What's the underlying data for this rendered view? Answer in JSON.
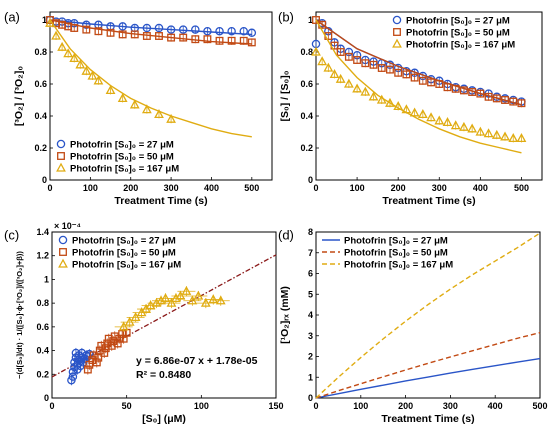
{
  "colors": {
    "blue": "#2a55c8",
    "red": "#c24a14",
    "gold": "#e0ac12",
    "fit": "#8b1a1a"
  },
  "chart_data": [
    {
      "type": "scatter",
      "panel": "(a)",
      "xlabel": "Treatment Time (s)",
      "ylabel": "[³O₂] / [³O₂]₀",
      "xlim": [
        0,
        550
      ],
      "ylim": [
        0,
        1.05
      ],
      "xticks": [
        "0",
        "100",
        "200",
        "300",
        "400",
        "500"
      ],
      "yticks": [
        "0",
        "0.2",
        "0.4",
        "0.6",
        "0.8",
        "1"
      ],
      "legend": [
        "Photofrin [S₀]₀ = 27 μM",
        "Photofrin [S₀]₀ = 50 μM",
        "Photofrin [S₀]₀ = 167 μM"
      ],
      "series": [
        {
          "color": "blue",
          "marker": "circle",
          "x": [
            0,
            15,
            30,
            45,
            60,
            90,
            120,
            150,
            180,
            210,
            240,
            270,
            300,
            330,
            360,
            390,
            420,
            450,
            480,
            500
          ],
          "y": [
            1.0,
            0.99,
            0.99,
            0.98,
            0.98,
            0.97,
            0.97,
            0.96,
            0.96,
            0.95,
            0.95,
            0.95,
            0.94,
            0.94,
            0.94,
            0.93,
            0.93,
            0.93,
            0.93,
            0.92
          ],
          "fit_x": [
            0,
            100,
            200,
            300,
            400,
            500
          ],
          "fit_y": [
            1.0,
            0.975,
            0.955,
            0.94,
            0.925,
            0.91
          ]
        },
        {
          "color": "red",
          "marker": "square",
          "x": [
            0,
            15,
            30,
            45,
            60,
            90,
            120,
            150,
            180,
            210,
            240,
            270,
            300,
            330,
            360,
            390,
            420,
            450,
            480,
            500
          ],
          "y": [
            1.0,
            0.98,
            0.97,
            0.96,
            0.95,
            0.94,
            0.93,
            0.92,
            0.91,
            0.91,
            0.9,
            0.9,
            0.89,
            0.89,
            0.88,
            0.88,
            0.87,
            0.87,
            0.87,
            0.86
          ],
          "fit_x": [
            0,
            100,
            200,
            300,
            400,
            500
          ],
          "fit_y": [
            1.0,
            0.95,
            0.915,
            0.89,
            0.865,
            0.85
          ]
        },
        {
          "color": "gold",
          "marker": "triangle",
          "x": [
            0,
            15,
            30,
            45,
            60,
            75,
            90,
            105,
            120,
            150,
            180,
            210,
            240,
            270,
            300
          ],
          "y": [
            0.98,
            0.9,
            0.83,
            0.79,
            0.76,
            0.72,
            0.68,
            0.65,
            0.62,
            0.56,
            0.51,
            0.47,
            0.44,
            0.41,
            0.38
          ],
          "fit_x": [
            0,
            50,
            100,
            150,
            200,
            250,
            300,
            350,
            400,
            450,
            500
          ],
          "fit_y": [
            1.0,
            0.82,
            0.69,
            0.59,
            0.51,
            0.45,
            0.4,
            0.36,
            0.32,
            0.29,
            0.27
          ]
        }
      ]
    },
    {
      "type": "scatter",
      "panel": "(b)",
      "xlabel": "Treatment Time (s)",
      "ylabel": "[S₀] / [S₀]₀",
      "xlim": [
        0,
        550
      ],
      "ylim": [
        0,
        1.05
      ],
      "xticks": [
        "0",
        "100",
        "200",
        "300",
        "400",
        "500"
      ],
      "yticks": [
        "0",
        "0.2",
        "0.4",
        "0.6",
        "0.8",
        "1"
      ],
      "legend": [
        "Photofrin [S₀]₀ = 27 μM",
        "Photofrin [S₀]₀ = 50 μM",
        "Photofrin [S₀]₀ = 167 μM"
      ],
      "series": [
        {
          "color": "blue",
          "marker": "circle",
          "x": [
            0,
            15,
            30,
            45,
            60,
            80,
            100,
            120,
            140,
            160,
            180,
            200,
            220,
            240,
            260,
            280,
            300,
            320,
            340,
            360,
            380,
            400,
            420,
            440,
            460,
            480,
            500
          ],
          "y": [
            0.85,
            0.98,
            0.93,
            0.86,
            0.82,
            0.8,
            0.78,
            0.75,
            0.74,
            0.73,
            0.72,
            0.7,
            0.68,
            0.67,
            0.65,
            0.63,
            0.62,
            0.6,
            0.58,
            0.57,
            0.56,
            0.55,
            0.54,
            0.52,
            0.51,
            0.5,
            0.49
          ],
          "fit_x": [
            0,
            100,
            200,
            300,
            400,
            500
          ],
          "fit_y": [
            1.0,
            0.82,
            0.71,
            0.62,
            0.54,
            0.47
          ]
        },
        {
          "color": "red",
          "marker": "square",
          "x": [
            0,
            15,
            30,
            45,
            60,
            80,
            100,
            120,
            140,
            160,
            180,
            200,
            220,
            240,
            260,
            280,
            300,
            320,
            340,
            360,
            380,
            400,
            420,
            440,
            460,
            480,
            500
          ],
          "y": [
            1.0,
            0.97,
            0.9,
            0.84,
            0.8,
            0.77,
            0.75,
            0.73,
            0.72,
            0.7,
            0.69,
            0.67,
            0.66,
            0.64,
            0.62,
            0.61,
            0.6,
            0.58,
            0.57,
            0.56,
            0.55,
            0.54,
            0.52,
            0.51,
            0.5,
            0.49,
            0.48
          ],
          "fit_x": [
            0,
            100,
            200,
            300,
            400,
            500
          ],
          "fit_y": [
            1.0,
            0.82,
            0.71,
            0.62,
            0.54,
            0.47
          ]
        },
        {
          "color": "gold",
          "marker": "triangle",
          "x": [
            0,
            15,
            30,
            45,
            60,
            80,
            100,
            120,
            140,
            160,
            180,
            200,
            220,
            240,
            260,
            280,
            300,
            320,
            340,
            360,
            380,
            400,
            420,
            440,
            460,
            480,
            500
          ],
          "y": [
            0.8,
            0.74,
            0.7,
            0.66,
            0.63,
            0.6,
            0.57,
            0.55,
            0.52,
            0.5,
            0.48,
            0.46,
            0.44,
            0.42,
            0.41,
            0.39,
            0.37,
            0.36,
            0.34,
            0.33,
            0.32,
            0.3,
            0.29,
            0.28,
            0.27,
            0.26,
            0.26
          ],
          "fit_x": [
            0,
            50,
            100,
            150,
            200,
            250,
            300,
            350,
            400,
            450,
            500
          ],
          "fit_y": [
            1.0,
            0.78,
            0.64,
            0.53,
            0.45,
            0.38,
            0.32,
            0.27,
            0.23,
            0.2,
            0.17
          ]
        }
      ]
    },
    {
      "type": "scatter",
      "panel": "(c)",
      "xlabel": "[S₀] (μM)",
      "ylabel": "−(d[S₀]/dt) · 1/([S₀]·ϕ·[³O₂]/([³O₂]+β))",
      "exponent": "× 10⁻⁴",
      "xlim": [
        0,
        150
      ],
      "ylim": [
        0,
        1.4
      ],
      "xticks": [
        "0",
        "50",
        "100",
        "150"
      ],
      "yticks": [
        "0",
        "0.2",
        "0.4",
        "0.6",
        "0.8",
        "1",
        "1.2",
        "1.4"
      ],
      "legend": [
        "Photofrin [S₀]₀ = 27 μM",
        "Photofrin [S₀]₀ = 50 μM",
        "Photofrin [S₀]₀ = 167 μM"
      ],
      "annotation": {
        "equation": "y = 6.86e-07 x + 1.78e-05",
        "r2": "R² = 0.8480"
      },
      "fit": {
        "slope": 6.86e-07,
        "intercept": 1.78e-05,
        "scale": 10000,
        "x": [
          0,
          150
        ]
      },
      "series": [
        {
          "color": "blue",
          "marker": "circle",
          "x": [
            13,
            14,
            14,
            15,
            15,
            16,
            16,
            17,
            17,
            18,
            18,
            19,
            19,
            20,
            20,
            21,
            22,
            23,
            24,
            25
          ],
          "y": [
            0.15,
            0.18,
            0.22,
            0.26,
            0.3,
            0.34,
            0.38,
            0.24,
            0.28,
            0.32,
            0.36,
            0.27,
            0.31,
            0.34,
            0.38,
            0.3,
            0.33,
            0.36,
            0.35,
            0.37
          ]
        },
        {
          "color": "red",
          "marker": "square",
          "x": [
            24,
            25,
            27,
            28,
            30,
            31,
            32,
            33,
            35,
            36,
            37,
            38,
            40,
            41,
            42,
            44,
            45,
            47,
            48,
            50
          ],
          "y": [
            0.24,
            0.28,
            0.32,
            0.36,
            0.3,
            0.34,
            0.4,
            0.44,
            0.38,
            0.42,
            0.46,
            0.5,
            0.44,
            0.48,
            0.52,
            0.46,
            0.5,
            0.54,
            0.5,
            0.55
          ]
        },
        {
          "color": "gold",
          "marker": "triangle",
          "x": [
            48,
            52,
            56,
            60,
            63,
            66,
            70,
            73,
            76,
            80,
            83,
            86,
            90,
            94,
            98,
            103,
            108,
            113
          ],
          "y": [
            0.6,
            0.64,
            0.68,
            0.72,
            0.75,
            0.78,
            0.8,
            0.82,
            0.84,
            0.8,
            0.84,
            0.86,
            0.9,
            0.82,
            0.86,
            0.8,
            0.83,
            0.82
          ]
        }
      ]
    },
    {
      "type": "line",
      "panel": "(d)",
      "xlabel": "Treatment Time (s)",
      "ylabel": "[¹O₂]ᵣₓ (mM)",
      "xlim": [
        0,
        500
      ],
      "ylim": [
        0,
        8
      ],
      "xticks": [
        "0",
        "100",
        "200",
        "300",
        "400",
        "500"
      ],
      "yticks": [
        "0",
        "1",
        "2",
        "3",
        "4",
        "5",
        "6",
        "7",
        "8"
      ],
      "legend": [
        "Photofrin [S₀]₀ = 27 μM",
        "Photofrin [S₀]₀ = 50 μM",
        "Photofrin [S₀]₀ = 167 μM"
      ],
      "series": [
        {
          "color": "blue",
          "dash": "solid",
          "x": [
            0,
            50,
            100,
            150,
            200,
            250,
            300,
            350,
            400,
            450,
            500
          ],
          "y": [
            0,
            0.21,
            0.42,
            0.62,
            0.82,
            1.01,
            1.2,
            1.38,
            1.56,
            1.73,
            1.9
          ]
        },
        {
          "color": "red",
          "dash": "dashed",
          "x": [
            0,
            50,
            100,
            150,
            200,
            250,
            300,
            350,
            400,
            450,
            500
          ],
          "y": [
            0,
            0.35,
            0.69,
            1.02,
            1.35,
            1.67,
            1.98,
            2.28,
            2.58,
            2.88,
            3.15
          ]
        },
        {
          "color": "gold",
          "dash": "dashed",
          "x": [
            0,
            50,
            100,
            150,
            200,
            250,
            300,
            350,
            400,
            450,
            500
          ],
          "y": [
            0,
            1.0,
            1.95,
            2.85,
            3.7,
            4.5,
            5.25,
            5.95,
            6.6,
            7.25,
            7.95
          ]
        }
      ]
    }
  ]
}
